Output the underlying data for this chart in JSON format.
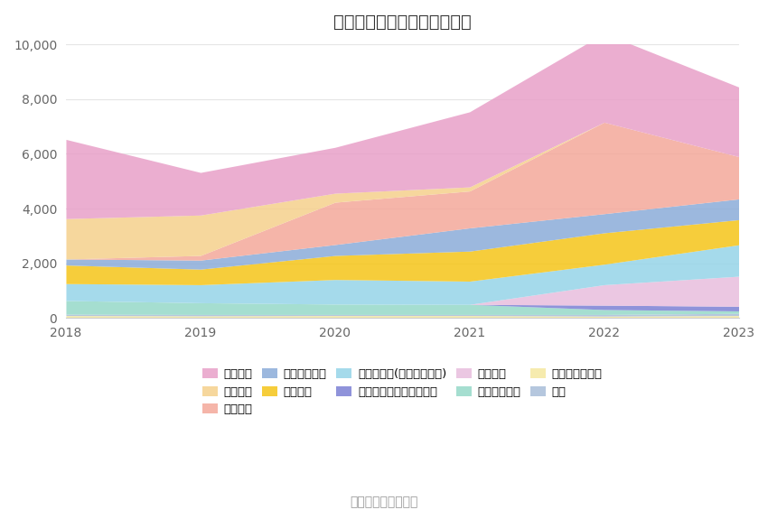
{
  "title": "历年主要负债堆积图（万元）",
  "years": [
    2018,
    2019,
    2020,
    2021,
    2022,
    2023
  ],
  "source": "数据来源：恒生聚源",
  "series_bottom_to_top": [
    {
      "name": "递延所得税负债",
      "color": "#F5E8A0",
      "values": [
        80,
        70,
        80,
        80,
        60,
        80
      ]
    },
    {
      "name": "其它",
      "color": "#A8BDD9",
      "values": [
        50,
        50,
        40,
        40,
        60,
        80
      ]
    },
    {
      "name": "长期递延收益",
      "color": "#96D9C8",
      "values": [
        500,
        430,
        380,
        370,
        180,
        90
      ]
    },
    {
      "name": "一年内到期的非流动负债",
      "color": "#7B80D4",
      "values": [
        0,
        0,
        0,
        0,
        160,
        170
      ]
    },
    {
      "name": "租赁负债",
      "color": "#E8BEDD",
      "values": [
        0,
        0,
        0,
        0,
        750,
        1100
      ]
    },
    {
      "name": "其他应付款(含利息和股利)",
      "color": "#96D4E8",
      "values": [
        620,
        660,
        900,
        850,
        750,
        1150
      ]
    },
    {
      "name": "应交税费",
      "color": "#F5C518",
      "values": [
        680,
        570,
        880,
        1100,
        1150,
        920
      ]
    },
    {
      "name": "应付职工薪酬",
      "color": "#8BACD9",
      "values": [
        220,
        330,
        400,
        850,
        700,
        760
      ]
    },
    {
      "name": "合同负债",
      "color": "#F4A89A",
      "values": [
        0,
        170,
        1550,
        1350,
        3350,
        1550
      ]
    },
    {
      "name": "预收款项",
      "color": "#F5D08C",
      "values": [
        1480,
        1480,
        330,
        150,
        0,
        0
      ]
    },
    {
      "name": "应付账款",
      "color": "#E8A0C8",
      "values": [
        2900,
        1560,
        1680,
        2750,
        3250,
        2550
      ]
    }
  ],
  "legend_order": [
    {
      "name": "应付账款",
      "color": "#E8A0C8"
    },
    {
      "name": "预收款项",
      "color": "#F5D08C"
    },
    {
      "name": "合同负债",
      "color": "#F4A89A"
    },
    {
      "name": "应付职工薪酬",
      "color": "#8BACD9"
    },
    {
      "name": "应交税费",
      "color": "#F5C518"
    },
    {
      "name": "其他应付款(含利息和股利)",
      "color": "#96D4E8"
    },
    {
      "name": "一年内到期的非流动负债",
      "color": "#7B80D4"
    },
    {
      "name": "租赁负债",
      "color": "#E8BEDD"
    },
    {
      "name": "长期递延收益",
      "color": "#96D9C8"
    },
    {
      "name": "递延所得税负债",
      "color": "#F5E8A0"
    },
    {
      "name": "其它",
      "color": "#A8BDD9"
    }
  ],
  "ylim": [
    0,
    10000
  ],
  "yticks": [
    0,
    2000,
    4000,
    6000,
    8000,
    10000
  ],
  "background_color": "#ffffff",
  "grid_color": "#e5e5e5",
  "title_fontsize": 14,
  "legend_fontsize": 9.5,
  "tick_fontsize": 10
}
